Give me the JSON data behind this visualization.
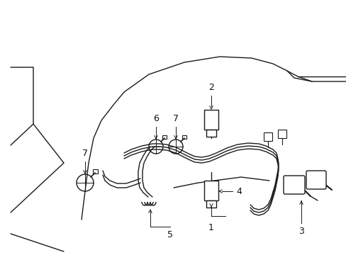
{
  "bg_color": "#ffffff",
  "line_color": "#1a1a1a",
  "text_color": "#111111",
  "figsize": [
    4.89,
    3.6
  ],
  "dpi": 100
}
